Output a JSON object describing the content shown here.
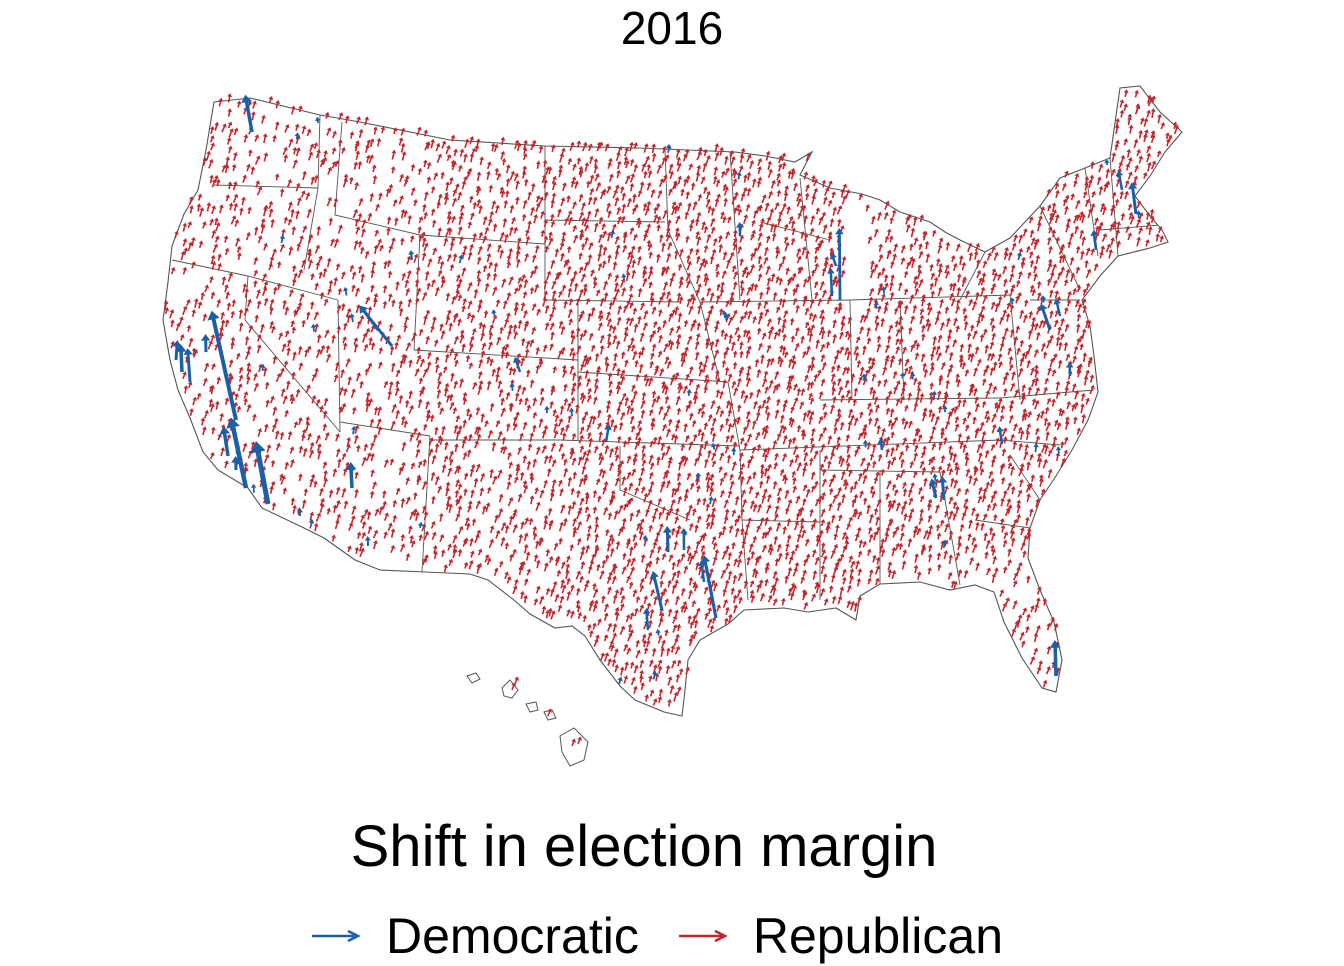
{
  "title": "2016",
  "legend": {
    "title": "Shift in election margin",
    "items": [
      {
        "label": "Democratic",
        "color": "#1a5fa8"
      },
      {
        "label": "Republican",
        "color": "#c1272d"
      }
    ]
  },
  "colors": {
    "democratic": "#1a5fa8",
    "republican": "#c1272d",
    "state_border": "#555555",
    "background": "#ffffff"
  },
  "map": {
    "region": "United States",
    "unit": "county",
    "dominant_shift": "Republican"
  }
}
